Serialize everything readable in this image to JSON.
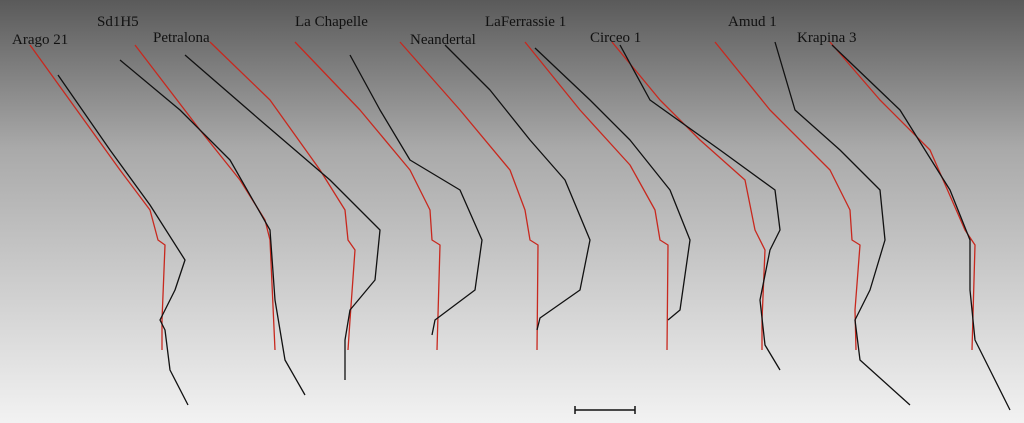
{
  "labels": [
    "Arago 21",
    "Sd1H5",
    "Petralona",
    "La Chapelle",
    "Neandertal",
    "LaFerrassie 1",
    "Circeo 1",
    "Amud 1",
    "Krapina 3"
  ]
}
